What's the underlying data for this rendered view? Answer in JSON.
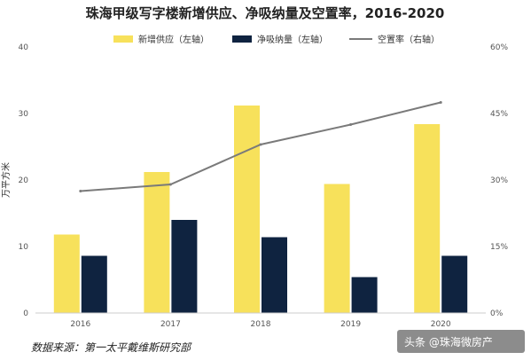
{
  "chart_data": {
    "type": "bar",
    "title": "珠海甲级写字楼新增供应、净吸纳量及空置率，2016-2020",
    "categories": [
      "2016",
      "2017",
      "2018",
      "2019",
      "2020"
    ],
    "series": [
      {
        "name": "新增供应（左轴）",
        "type": "bar",
        "axis": "left",
        "color": "#f7e15b",
        "values": [
          11.8,
          21.2,
          31.2,
          19.4,
          28.4
        ]
      },
      {
        "name": "净吸纳量（左轴）",
        "type": "bar",
        "axis": "left",
        "color": "#0f2340",
        "values": [
          8.6,
          14.0,
          11.4,
          5.4,
          8.6
        ]
      },
      {
        "name": "空置率（右轴）",
        "type": "line",
        "axis": "right",
        "color": "#7a7a7a",
        "values": [
          27.5,
          29.0,
          38.0,
          42.5,
          47.5
        ]
      }
    ],
    "ylabel": "万平方米",
    "ylim": [
      0,
      40
    ],
    "yticks": [
      "0",
      "10",
      "20",
      "30",
      "40"
    ],
    "y2lim": [
      0,
      60
    ],
    "y2ticks": [
      "0%",
      "15%",
      "30%",
      "45%",
      "60%"
    ],
    "grid": false,
    "legend_position": "top"
  },
  "source": "数据来源：第一太平戴维斯研究部",
  "watermark": "头条 @珠海微房产"
}
